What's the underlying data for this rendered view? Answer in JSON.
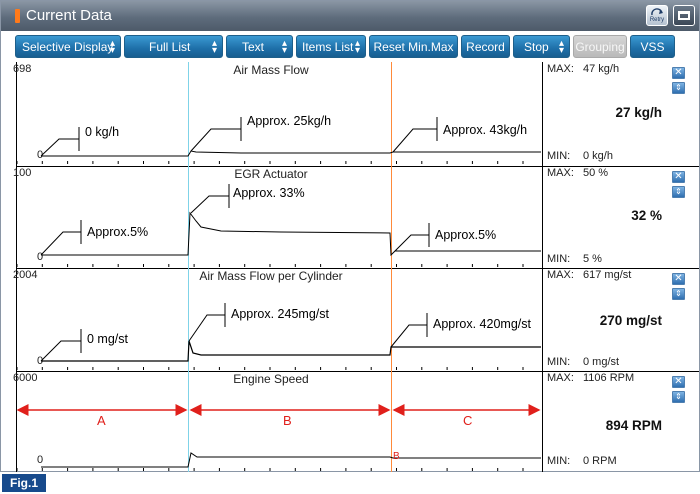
{
  "window": {
    "title": "Current Data",
    "retry_label": "Retry",
    "accent_color": "#ff7a1a"
  },
  "toolbar": {
    "buttons": [
      {
        "label": "Selective Display",
        "arrow": true,
        "enabled": true
      },
      {
        "label": "Full List",
        "arrow": true,
        "enabled": true
      },
      {
        "label": "Text",
        "arrow": true,
        "enabled": true
      },
      {
        "label": "Items List",
        "arrow": true,
        "enabled": true
      },
      {
        "label": "Reset Min.Max",
        "arrow": false,
        "enabled": true
      },
      {
        "label": "Record",
        "arrow": false,
        "enabled": true
      },
      {
        "label": "Stop",
        "arrow": true,
        "enabled": true
      },
      {
        "label": "Grouping",
        "arrow": false,
        "enabled": false
      },
      {
        "label": "VSS",
        "arrow": false,
        "enabled": true
      }
    ]
  },
  "panels": [
    {
      "name": "Air Mass Flow",
      "scale_top": "698",
      "scale_zero": "0",
      "max_label": "MAX:",
      "max_value": "47 kg/h",
      "min_label": "MIN:",
      "min_value": "0 kg/h",
      "current_value": "27 kg/h",
      "callouts": [
        "0 kg/h",
        "Approx. 25kg/h",
        "Approx. 43kg/h"
      ]
    },
    {
      "name": "EGR Actuator",
      "scale_top": "100",
      "scale_zero": "0",
      "max_label": "MAX:",
      "max_value": "50 %",
      "min_label": "MIN:",
      "min_value": "5 %",
      "current_value": "32 %",
      "callouts": [
        "Approx.5%",
        "Approx. 33%",
        "Approx.5%"
      ]
    },
    {
      "name": "Air Mass Flow per Cylinder",
      "scale_top": "2004",
      "scale_zero": "0",
      "max_label": "MAX:",
      "max_value": "617 mg/st",
      "min_label": "MIN:",
      "min_value": "0 mg/st",
      "current_value": "270 mg/st",
      "callouts": [
        "0 mg/st",
        "Approx. 245mg/st",
        "Approx. 420mg/st"
      ]
    },
    {
      "name": "Engine Speed",
      "scale_top": "6000",
      "scale_zero": "0",
      "max_label": "MAX:",
      "max_value": "1106 RPM",
      "min_label": "MIN:",
      "min_value": "0 RPM",
      "current_value": "894 RPM",
      "callouts": []
    }
  ],
  "segments": {
    "labels": [
      "A",
      "B",
      "C"
    ],
    "marker": "B",
    "color": "#e0201b"
  },
  "figure_label": "Fig.1"
}
